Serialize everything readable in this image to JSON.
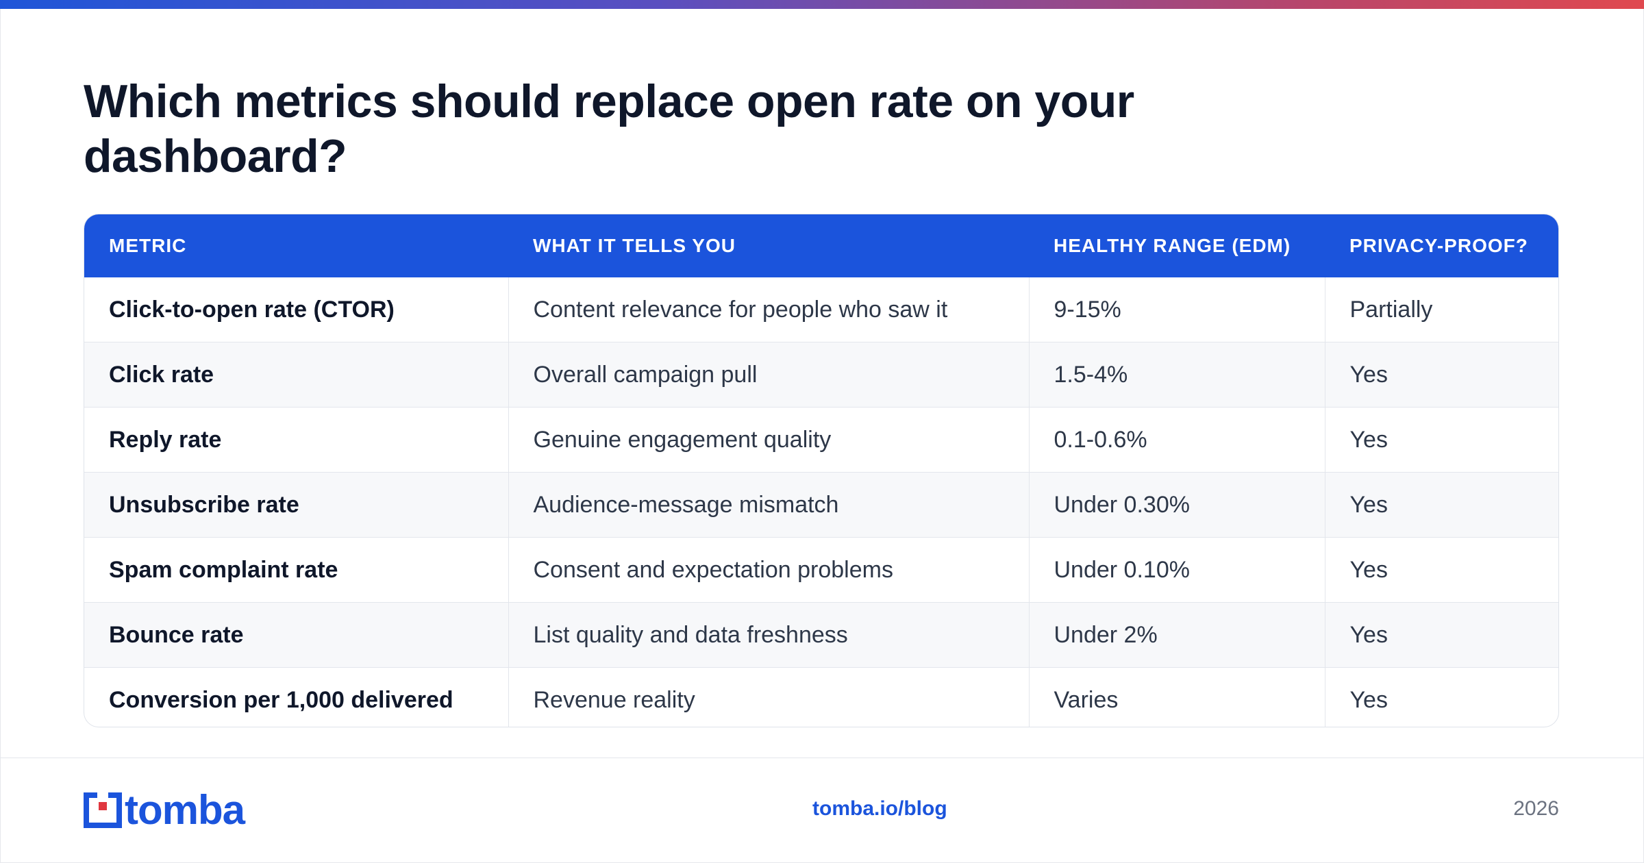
{
  "title": "Which metrics should replace open rate on your dashboard?",
  "colors": {
    "accent": "#1b54dc",
    "title": "#0f172a",
    "logo_red": "#e0373f"
  },
  "table": {
    "headers": [
      "METRIC",
      "WHAT IT TELLS YOU",
      "HEALTHY RANGE (EDM)",
      "PRIVACY-PROOF?"
    ],
    "rows": [
      [
        "Click-to-open rate (CTOR)",
        "Content relevance for people who saw it",
        "9-15%",
        "Partially"
      ],
      [
        "Click rate",
        "Overall campaign pull",
        "1.5-4%",
        "Yes"
      ],
      [
        "Reply rate",
        "Genuine engagement quality",
        "0.1-0.6%",
        "Yes"
      ],
      [
        "Unsubscribe rate",
        "Audience-message mismatch",
        "Under 0.30%",
        "Yes"
      ],
      [
        "Spam complaint rate",
        "Consent and expectation problems",
        "Under 0.10%",
        "Yes"
      ],
      [
        "Bounce rate",
        "List quality and data freshness",
        "Under 2%",
        "Yes"
      ],
      [
        "Conversion per 1,000 delivered",
        "Revenue reality",
        "Varies",
        "Yes"
      ]
    ]
  },
  "footer": {
    "logo_text": "tomba",
    "link": "tomba.io/blog",
    "year": "2026"
  }
}
